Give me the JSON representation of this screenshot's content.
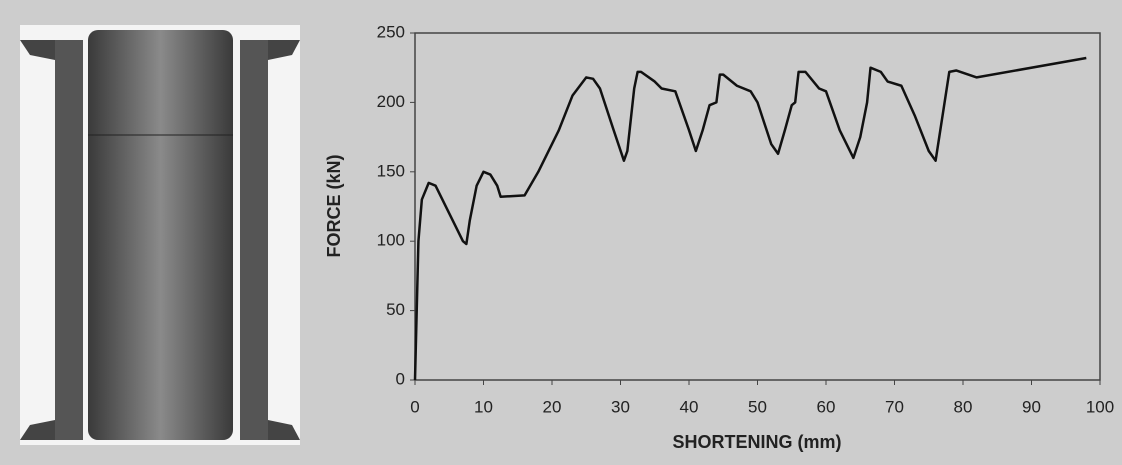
{
  "chart_data": {
    "type": "line",
    "x_label": "SHORTENING (mm)",
    "y_label": "FORCE (kN)",
    "x": [
      0,
      0.5,
      1,
      2,
      3,
      5,
      7,
      7.5,
      8,
      9,
      10,
      11,
      12,
      12.5,
      16,
      18,
      20,
      21,
      23,
      25,
      26,
      27,
      29,
      30.5,
      31,
      32,
      32.5,
      33,
      35,
      36,
      38,
      40,
      41,
      42,
      43,
      44,
      44.5,
      45,
      47,
      49,
      50,
      52,
      53,
      54,
      55,
      55.5,
      56,
      57,
      59,
      60,
      62,
      64,
      65,
      66,
      66.5,
      68,
      69,
      71,
      73,
      75,
      76,
      77,
      78,
      79,
      82,
      98
    ],
    "series": [
      {
        "color": "#111111",
        "values": [
          0,
          100,
          130,
          142,
          140,
          120,
          100,
          98,
          115,
          140,
          150,
          148,
          140,
          132,
          133,
          150,
          170,
          180,
          205,
          218,
          217,
          210,
          180,
          158,
          165,
          210,
          222,
          222,
          215,
          210,
          208,
          180,
          165,
          180,
          198,
          200,
          220,
          220,
          212,
          208,
          200,
          170,
          163,
          180,
          198,
          200,
          222,
          222,
          210,
          208,
          180,
          160,
          175,
          200,
          225,
          222,
          215,
          212,
          190,
          165,
          158,
          190,
          222,
          223,
          218,
          232
        ]
      }
    ],
    "xlim": [
      0,
      100
    ],
    "xticks": [
      0,
      10,
      20,
      30,
      40,
      50,
      60,
      70,
      80,
      90,
      100
    ],
    "ylim": [
      0,
      250
    ],
    "yticks": [
      0,
      50,
      100,
      150,
      200,
      250
    ]
  }
}
